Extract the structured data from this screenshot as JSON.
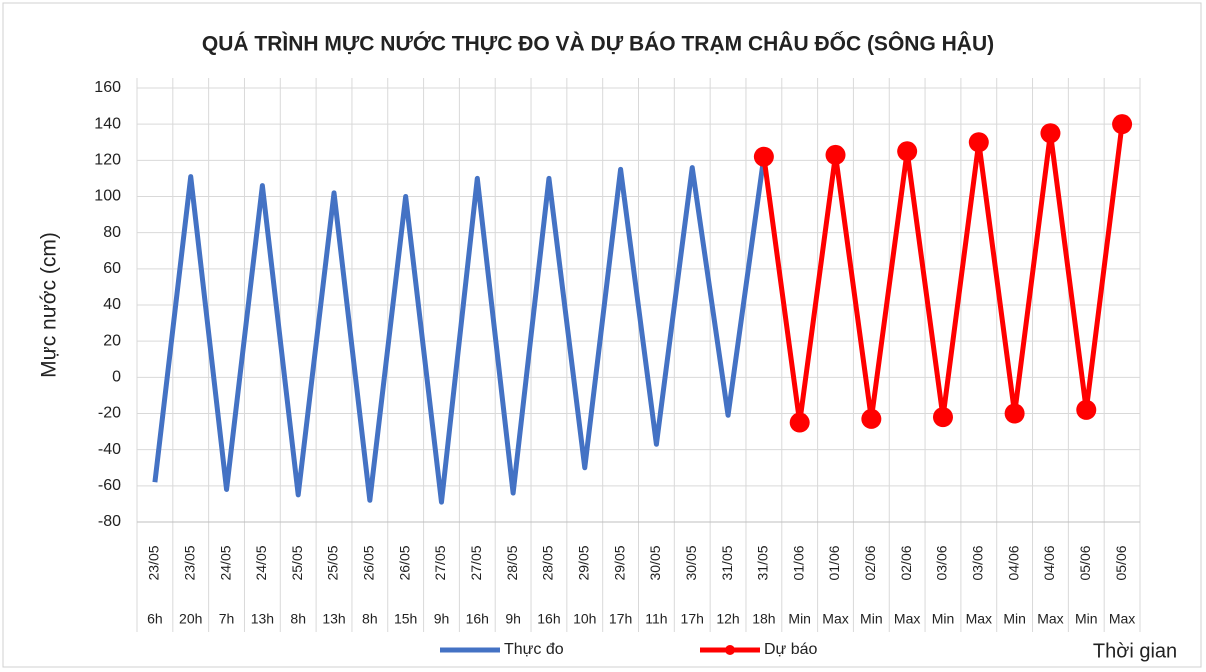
{
  "chart_data": {
    "type": "line",
    "title": "QUÁ TRÌNH MỰC NƯỚC THỰC ĐO VÀ DỰ BÁO TRẠM CHÂU ĐỐC (SÔNG HẬU)",
    "ylabel": "Mực nước (cm)",
    "xlabel": "Thời gian",
    "categories": [
      [
        "23/05",
        "6h"
      ],
      [
        "23/05",
        "20h"
      ],
      [
        "24/05",
        "7h"
      ],
      [
        "24/05",
        "13h"
      ],
      [
        "25/05",
        "8h"
      ],
      [
        "25/05",
        "13h"
      ],
      [
        "26/05",
        "8h"
      ],
      [
        "26/05",
        "15h"
      ],
      [
        "27/05",
        "9h"
      ],
      [
        "27/05",
        "16h"
      ],
      [
        "28/05",
        "9h"
      ],
      [
        "28/05",
        "16h"
      ],
      [
        "29/05",
        "10h"
      ],
      [
        "29/05",
        "17h"
      ],
      [
        "30/05",
        "11h"
      ],
      [
        "30/05",
        "17h"
      ],
      [
        "31/05",
        "12h"
      ],
      [
        "31/05",
        "18h"
      ],
      [
        "01/06",
        "Min"
      ],
      [
        "01/06",
        "Max"
      ],
      [
        "02/06",
        "Min"
      ],
      [
        "02/06",
        "Max"
      ],
      [
        "03/06",
        "Min"
      ],
      [
        "03/06",
        "Max"
      ],
      [
        "04/06",
        "Min"
      ],
      [
        "04/06",
        "Max"
      ],
      [
        "05/06",
        "Min"
      ],
      [
        "05/06",
        "Max"
      ]
    ],
    "series": [
      {
        "name": "Thực đo",
        "color": "#4472c4",
        "markers": false,
        "values": [
          -58,
          111,
          -62,
          106,
          -65,
          102,
          -68,
          100,
          -69,
          110,
          -64,
          110,
          -50,
          115,
          -37,
          116,
          -21,
          122,
          null,
          null,
          null,
          null,
          null,
          null,
          null,
          null,
          null,
          null
        ]
      },
      {
        "name": "Dự báo",
        "color": "#ff0000",
        "markers": true,
        "values": [
          null,
          null,
          null,
          null,
          null,
          null,
          null,
          null,
          null,
          null,
          null,
          null,
          null,
          null,
          null,
          null,
          null,
          122,
          -25,
          123,
          -23,
          125,
          -22,
          130,
          -20,
          135,
          -18,
          140
        ]
      }
    ],
    "ylim": [
      -80,
      160
    ],
    "yticks": [
      -80,
      -60,
      -40,
      -20,
      0,
      20,
      40,
      60,
      80,
      100,
      120,
      140,
      160
    ],
    "grid": true,
    "legend": "bottom"
  }
}
